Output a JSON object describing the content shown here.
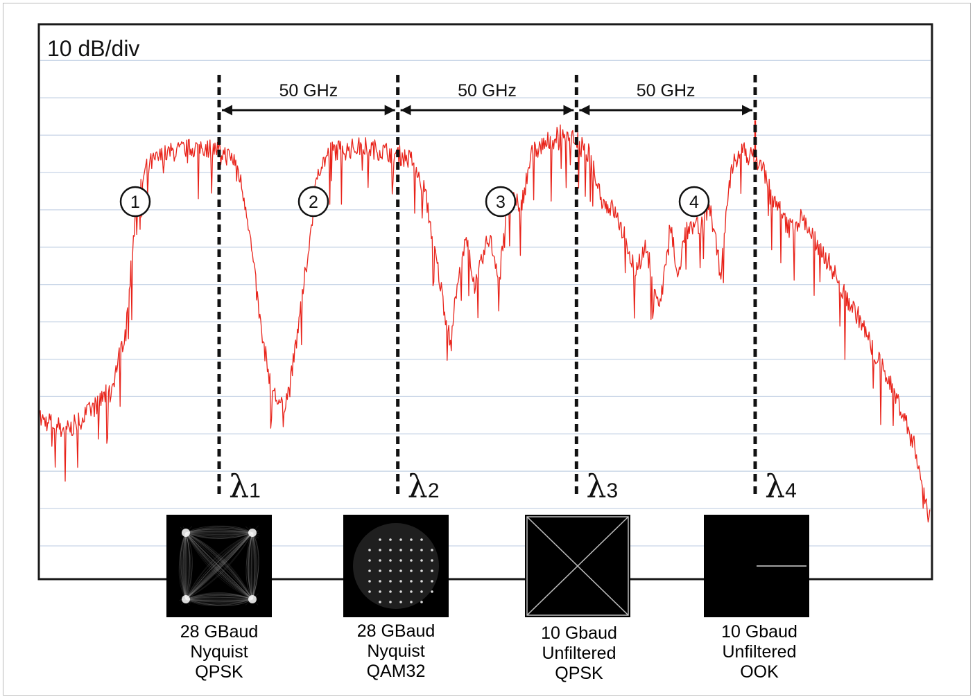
{
  "chart_data": {
    "type": "line",
    "scale_label": "10 dB/div",
    "xlabel": "",
    "ylabel": "",
    "grid": true,
    "x_unit": "GHz",
    "channel_spacing_labels": [
      "50 GHz",
      "50 GHz",
      "50 GHz"
    ],
    "channel_numbers": [
      "1",
      "2",
      "3",
      "4"
    ],
    "wavelengths": [
      {
        "symbol": "λ",
        "index": "1",
        "x": 0
      },
      {
        "symbol": "λ",
        "index": "2",
        "x": 50
      },
      {
        "symbol": "λ",
        "index": "3",
        "x": 100
      },
      {
        "symbol": "λ",
        "index": "4",
        "x": 150
      }
    ],
    "xlim": [
      -50,
      200
    ],
    "ylim_divisions": [
      0,
      14
    ],
    "series": [
      {
        "color": "#e8231a",
        "x": [
          -50,
          -42,
          -35,
          -30,
          -26,
          -23,
          -20,
          -18,
          -15,
          -10,
          -5,
          0,
          5,
          8,
          12,
          14,
          16,
          18,
          20,
          23,
          26,
          28,
          32,
          36,
          40,
          45,
          50,
          55,
          58,
          62,
          65,
          68,
          70,
          72,
          76,
          79,
          81,
          85,
          88,
          92,
          96,
          100,
          104,
          108,
          111,
          114,
          117,
          120,
          124,
          127,
          129,
          131,
          135,
          138,
          141,
          144,
          147,
          150,
          153,
          156,
          160,
          164,
          168,
          172,
          176,
          180,
          184,
          188,
          192,
          196,
          199
        ],
        "y": [
          3.4,
          3.1,
          3.7,
          4.2,
          5.8,
          9.2,
          10.2,
          10.3,
          10.5,
          10.6,
          10.7,
          10.6,
          10.3,
          9.0,
          5.8,
          4.7,
          4.0,
          3.7,
          4.2,
          6.2,
          8.5,
          10.1,
          10.6,
          10.6,
          10.7,
          10.6,
          10.5,
          10.3,
          9.5,
          7.2,
          5.5,
          7.5,
          8.3,
          6.9,
          8.3,
          7.2,
          9.3,
          9.1,
          10.5,
          10.8,
          11.0,
          10.9,
          10.5,
          9.2,
          9.0,
          8.3,
          7.4,
          8.0,
          6.4,
          8.6,
          7.1,
          8.4,
          8.6,
          9.1,
          7.3,
          10.1,
          10.6,
          10.4,
          10.1,
          9.3,
          8.5,
          8.8,
          8.1,
          7.5,
          6.7,
          6.1,
          5.2,
          4.5,
          3.6,
          2.5,
          0.9
        ]
      }
    ]
  },
  "constellations": [
    {
      "name": "qpsk-nyquist",
      "caption": [
        "28 GBaud",
        "Nyquist",
        "QPSK"
      ]
    },
    {
      "name": "qam32-nyquist",
      "caption": [
        "28 GBaud",
        "Nyquist",
        "QAM32"
      ]
    },
    {
      "name": "qpsk-unfiltered",
      "caption": [
        "10 Gbaud",
        "Unfiltered",
        "QPSK"
      ]
    },
    {
      "name": "ook-unfiltered",
      "caption": [
        "10 Gbaud",
        "Unfiltered",
        "OOK"
      ]
    }
  ],
  "colors": {
    "trace": "#e8231a",
    "grid": "#c7d4e6",
    "frame": "#1a1a1a",
    "constellation_bg": "#000000"
  }
}
